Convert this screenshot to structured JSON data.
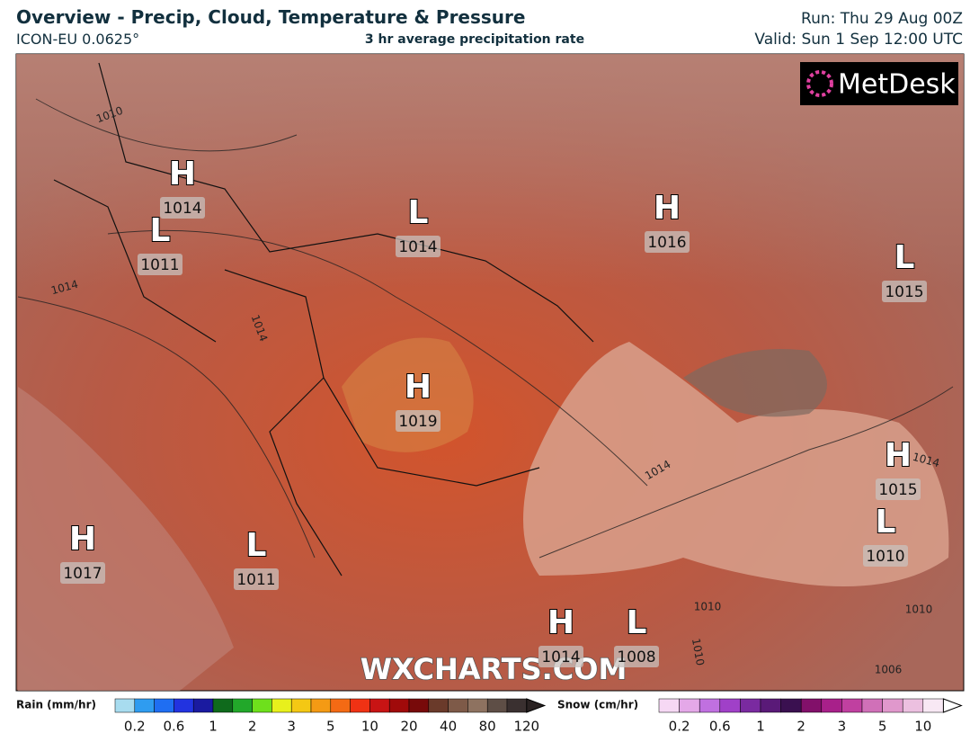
{
  "header": {
    "title": "Overview - Precip, Cloud, Temperature & Pressure",
    "model": "ICON-EU 0.0625°",
    "subtitle": "3 hr average precipitation rate",
    "run": "Run: Thu 29 Aug 00Z",
    "valid": "Valid: Sun 1 Sep 12:00 UTC"
  },
  "logo": "MetDesk",
  "watermark": "WXCHARTS.COM",
  "pressure_centers": [
    {
      "type": "H",
      "value": 1014
    },
    {
      "type": "L",
      "value": 1011
    },
    {
      "type": "L",
      "value": 1014
    },
    {
      "type": "H",
      "value": 1016
    },
    {
      "type": "L",
      "value": 1015
    },
    {
      "type": "H",
      "value": 1019
    },
    {
      "type": "H",
      "value": 1015
    },
    {
      "type": "L",
      "value": 1010
    },
    {
      "type": "H",
      "value": 1017
    },
    {
      "type": "L",
      "value": 1011
    },
    {
      "type": "H",
      "value": 1014
    },
    {
      "type": "L",
      "value": 1008
    }
  ],
  "isobar_labels": [
    1010,
    1014,
    1014,
    1014,
    1014,
    1010,
    1010,
    1010,
    1006
  ],
  "legend": {
    "rain": {
      "label": "Rain (mm/hr)",
      "ticks": [
        0.2,
        0.6,
        1,
        2,
        3,
        5,
        10,
        20,
        40,
        80,
        120
      ],
      "colors": [
        "#a8dcef",
        "#2f9cf0",
        "#1f6ef2",
        "#2233e0",
        "#1a1aa0",
        "#0f6a1c",
        "#22a82a",
        "#6ee01c",
        "#e8f01c",
        "#f4c814",
        "#f49a14",
        "#f46a14",
        "#f03214",
        "#c81414",
        "#a00a0a",
        "#780a0a",
        "#6a3a2a",
        "#7e5a48",
        "#8e7260",
        "#5e4e46",
        "#3a3030"
      ]
    },
    "snow": {
      "label": "Snow (cm/hr)",
      "ticks": [
        0.2,
        0.6,
        1,
        2,
        3,
        5,
        10
      ],
      "colors": [
        "#f6d8f4",
        "#e4a8e8",
        "#c070e0",
        "#a040c8",
        "#7a2aa0",
        "#5a1a78",
        "#3a1050",
        "#82106a",
        "#a8208a",
        "#c040a0",
        "#d070b8",
        "#e098cc",
        "#ecc0e0",
        "#f8e8f4"
      ]
    }
  }
}
